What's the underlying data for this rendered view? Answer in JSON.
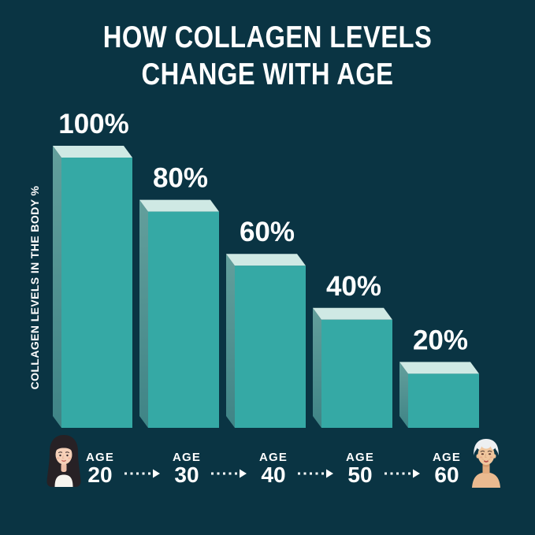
{
  "title": {
    "line1": "HOW COLLAGEN LEVELS",
    "line2": "CHANGE WITH AGE"
  },
  "y_axis_label": "COLLAGEN LEVELS IN THE BODY %",
  "chart_data": {
    "type": "bar",
    "style": "3d-extruded",
    "title": "HOW COLLAGEN LEVELS CHANGE WITH AGE",
    "ylabel": "COLLAGEN LEVELS IN THE BODY %",
    "xlabel": "",
    "category_prefix": "AGE",
    "categories": [
      "20",
      "30",
      "40",
      "50",
      "60"
    ],
    "values": [
      100,
      80,
      60,
      40,
      20
    ],
    "value_labels": [
      "100%",
      "80%",
      "60%",
      "40%",
      "20%"
    ],
    "ylim": [
      0,
      100
    ],
    "grid": false,
    "legend": false,
    "annotations": {
      "left_figure": "young-woman-icon",
      "right_figure": "older-woman-icon",
      "between_categories": "dashed-arrow-icon"
    }
  },
  "colors": {
    "background": "#0a3443",
    "bar_front": "#35a9a5",
    "bar_top": "#cfe9e4",
    "bar_side_top": "#639f9c",
    "bar_side_bottom": "#3f8486",
    "text": "#ffffff",
    "arrow": "#ffffff"
  }
}
